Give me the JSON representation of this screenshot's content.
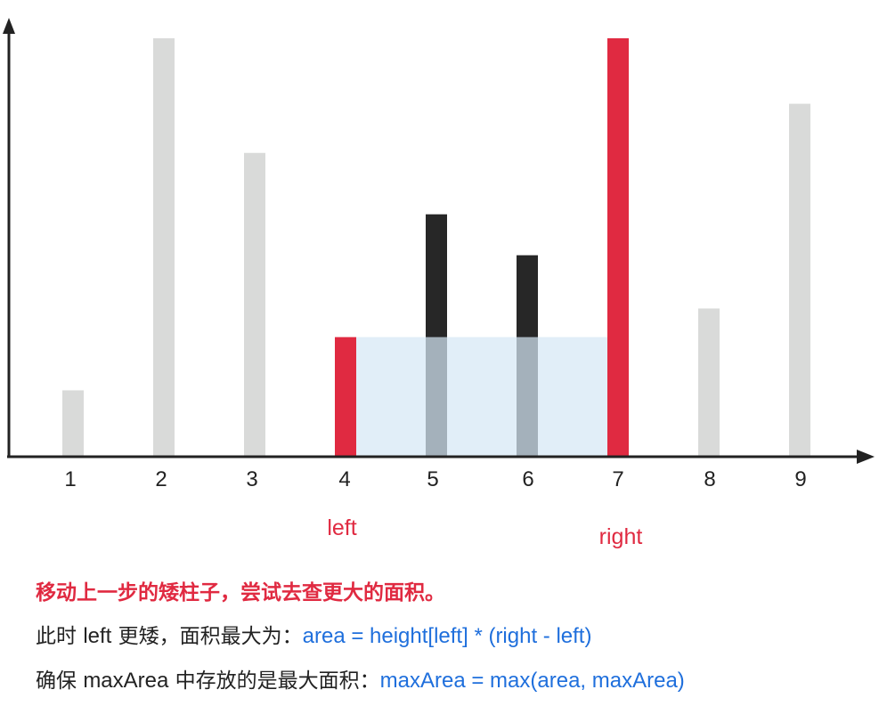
{
  "colors": {
    "neutral_bar": "#d9dad9",
    "pointer_bar": "#e02a41",
    "inner_bar": "#272727",
    "area_fill": "#d6e8f5",
    "axis": "#222222",
    "accent_text": "#e02a41",
    "formula_text": "#1f6fdc",
    "body_text": "#222222"
  },
  "chart_data": {
    "type": "bar",
    "categories": [
      "1",
      "2",
      "3",
      "4",
      "5",
      "6",
      "7",
      "8",
      "9"
    ],
    "values": [
      1.6,
      10.2,
      7.4,
      2.9,
      5.9,
      4.9,
      10.2,
      3.6,
      8.6
    ],
    "bar_roles": [
      "other",
      "other",
      "other",
      "pointer",
      "inner",
      "inner",
      "pointer",
      "other",
      "other"
    ],
    "ylim": [
      0,
      10.2
    ],
    "area_between": {
      "from": "4",
      "to": "7",
      "height": 2.9
    },
    "pointers": {
      "left": {
        "label": "left",
        "at": "4"
      },
      "right": {
        "label": "right",
        "at": "7"
      }
    }
  },
  "caption": {
    "title": "移动上一步的矮柱子，尝试去查更大的面积。",
    "line1_prefix": "此时",
    "line1_word": "left",
    "line1_suffix": "更矮，面积最大为：",
    "line1_formula": "area = height[left] * (right - left)",
    "line2_prefix": "确保",
    "line2_word": "maxArea",
    "line2_suffix": "中存放的是最大面积：",
    "line2_formula": "maxArea = max(area, maxArea)"
  }
}
